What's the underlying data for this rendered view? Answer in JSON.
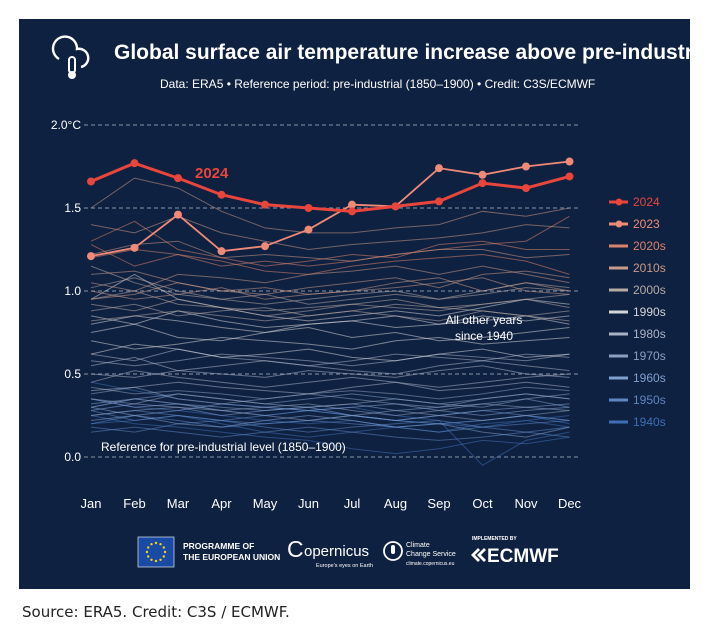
{
  "header": {
    "title": "Global surface air temperature increase above pre-industrial",
    "subtitle": "Data: ERA5 • Reference period: pre-industrial (1850–1900) • Credit: C3S/ECMWF"
  },
  "annotations": {
    "label_2024": "2024",
    "other_years_line1": "All other years",
    "other_years_line2": "since 1940",
    "reference": "Reference for pre-industrial level (1850–1900)"
  },
  "footer_logos": {
    "eu_line1": "PROGRAMME OF",
    "eu_line2": "THE EUROPEAN UNION",
    "copernicus": "opernicus",
    "copernicus_tag": "Europe's eyes on Earth",
    "c3s_line1": "Climate",
    "c3s_line2": "Change Service",
    "c3s_url": "climate.copernicus.eu",
    "implemented_by": "IMPLEMENTED BY",
    "ecmwf": "ECMWF"
  },
  "source": "Source: ERA5. Credit: C3S / ECMWF.",
  "colors": {
    "background": "#0f2140",
    "y2024": "#e8453c",
    "y2023": "#ef8a78",
    "grid": "#8a95a8",
    "text": "#ffffff"
  },
  "chart_data": {
    "type": "line",
    "title": "Global surface air temperature increase above pre-industrial",
    "xlabel": "",
    "ylabel": "",
    "ylim": [
      -0.2,
      2.0
    ],
    "yticks": [
      0.0,
      0.5,
      1.0,
      1.5,
      2.0
    ],
    "ytick_labels": [
      "0.0",
      "0.5",
      "1.0",
      "1.5",
      "2.0°C"
    ],
    "grid": "dashed horizontal",
    "categories": [
      "Jan",
      "Feb",
      "Mar",
      "Apr",
      "May",
      "Jun",
      "Jul",
      "Aug",
      "Sep",
      "Oct",
      "Nov",
      "Dec"
    ],
    "series": [
      {
        "name": "2024",
        "values": [
          1.66,
          1.77,
          1.68,
          1.58,
          1.52,
          1.5,
          1.48,
          1.51,
          1.54,
          1.65,
          1.62,
          1.69
        ]
      },
      {
        "name": "2023",
        "values": [
          1.21,
          1.26,
          1.46,
          1.24,
          1.27,
          1.37,
          1.52,
          1.51,
          1.74,
          1.7,
          1.75,
          1.78
        ]
      }
    ],
    "decades": [
      {
        "name": "2020s",
        "color": "#d9836c",
        "values": [
          [
            1.3,
            1.42,
            1.25,
            1.2,
            1.15,
            1.18,
            1.22,
            1.2,
            1.28,
            1.3,
            1.25,
            1.25
          ],
          [
            1.28,
            1.15,
            1.22,
            1.18,
            1.12,
            1.1,
            1.15,
            1.18,
            1.2,
            1.22,
            1.18,
            1.1
          ],
          [
            1.2,
            1.25,
            1.22,
            1.15,
            1.18,
            1.15,
            1.18,
            1.22,
            1.25,
            1.28,
            1.3,
            1.45
          ]
        ]
      },
      {
        "name": "2010s",
        "color": "#c99a88",
        "values": [
          [
            1.5,
            1.68,
            1.62,
            1.48,
            1.38,
            1.35,
            1.35,
            1.38,
            1.4,
            1.48,
            1.45,
            1.5
          ],
          [
            1.4,
            1.35,
            1.45,
            1.35,
            1.3,
            1.25,
            1.28,
            1.3,
            1.32,
            1.35,
            1.4,
            1.38
          ],
          [
            1.22,
            1.28,
            1.3,
            1.2,
            1.22,
            1.2,
            1.18,
            1.22,
            1.25,
            1.25,
            1.2,
            1.22
          ],
          [
            1.05,
            1.0,
            1.1,
            1.08,
            1.05,
            1.1,
            1.12,
            1.15,
            1.1,
            1.15,
            1.1,
            1.05
          ],
          [
            0.95,
            0.98,
            1.05,
            1.0,
            1.02,
            0.98,
            1.0,
            1.05,
            1.08,
            1.0,
            1.05,
            1.0
          ],
          [
            1.1,
            1.12,
            1.05,
            1.0,
            0.98,
            1.02,
            1.05,
            1.08,
            1.02,
            1.1,
            1.12,
            1.08
          ],
          [
            1.0,
            0.95,
            0.98,
            1.02,
            0.95,
            0.98,
            1.0,
            1.02,
            1.05,
            1.08,
            1.0,
            0.98
          ]
        ]
      },
      {
        "name": "2000s",
        "color": "#b6aaa6",
        "values": [
          [
            1.02,
            1.08,
            1.0,
            0.95,
            0.92,
            0.95,
            0.98,
            1.0,
            0.95,
            0.98,
            1.02,
            1.0
          ],
          [
            0.92,
            0.88,
            0.95,
            0.9,
            0.88,
            0.9,
            0.92,
            0.95,
            0.9,
            0.92,
            0.95,
            0.9
          ],
          [
            0.88,
            0.92,
            0.85,
            0.88,
            0.9,
            0.85,
            0.88,
            0.92,
            0.9,
            0.88,
            0.85,
            0.88
          ],
          [
            1.15,
            1.05,
            0.98,
            0.95,
            0.98,
            0.92,
            0.95,
            0.98,
            0.95,
            1.0,
            1.05,
            1.02
          ],
          [
            0.82,
            0.85,
            0.88,
            0.85,
            0.82,
            0.85,
            0.88,
            0.85,
            0.82,
            0.88,
            0.85,
            0.82
          ],
          [
            0.95,
            1.0,
            0.92,
            0.9,
            0.85,
            0.88,
            0.92,
            0.9,
            0.88,
            0.92,
            0.95,
            0.98
          ]
        ]
      },
      {
        "name": "1990s",
        "color": "#d4d4d8",
        "values": [
          [
            0.85,
            0.8,
            0.88,
            0.82,
            0.78,
            0.8,
            0.82,
            0.85,
            0.8,
            0.82,
            0.85,
            0.8
          ],
          [
            0.75,
            0.8,
            0.72,
            0.7,
            0.75,
            0.78,
            0.72,
            0.75,
            0.7,
            0.72,
            0.75,
            0.78
          ],
          [
            0.7,
            0.65,
            0.68,
            0.72,
            0.7,
            0.68,
            0.65,
            0.7,
            0.72,
            0.68,
            0.7,
            0.72
          ],
          [
            0.62,
            0.68,
            0.65,
            0.6,
            0.62,
            0.65,
            0.6,
            0.58,
            0.62,
            0.65,
            0.6,
            0.62
          ],
          [
            0.8,
            0.85,
            0.82,
            0.78,
            0.75,
            0.8,
            0.82,
            0.78,
            0.8,
            0.85,
            0.82,
            0.85
          ],
          [
            0.95,
            1.1,
            0.95,
            0.9,
            0.85,
            0.82,
            0.85,
            0.88,
            0.85,
            0.9,
            0.95,
            0.92
          ]
        ]
      },
      {
        "name": "1980s",
        "color": "#a9b2c6",
        "values": [
          [
            0.62,
            0.58,
            0.65,
            0.6,
            0.58,
            0.55,
            0.58,
            0.62,
            0.6,
            0.58,
            0.62,
            0.6
          ],
          [
            0.55,
            0.6,
            0.52,
            0.55,
            0.58,
            0.55,
            0.52,
            0.5,
            0.55,
            0.58,
            0.55,
            0.52
          ],
          [
            0.5,
            0.48,
            0.52,
            0.5,
            0.48,
            0.52,
            0.5,
            0.48,
            0.52,
            0.55,
            0.5,
            0.48
          ],
          [
            0.45,
            0.52,
            0.48,
            0.45,
            0.42,
            0.45,
            0.48,
            0.45,
            0.42,
            0.45,
            0.48,
            0.5
          ],
          [
            0.58,
            0.55,
            0.58,
            0.62,
            0.6,
            0.58,
            0.55,
            0.58,
            0.62,
            0.6,
            0.58,
            0.62
          ],
          [
            0.4,
            0.42,
            0.45,
            0.42,
            0.4,
            0.38,
            0.42,
            0.45,
            0.4,
            0.42,
            0.45,
            0.42
          ]
        ]
      },
      {
        "name": "1970s",
        "color": "#8d9fc0",
        "values": [
          [
            0.42,
            0.38,
            0.4,
            0.38,
            0.35,
            0.38,
            0.4,
            0.38,
            0.35,
            0.38,
            0.42,
            0.4
          ],
          [
            0.35,
            0.32,
            0.38,
            0.35,
            0.32,
            0.3,
            0.32,
            0.35,
            0.32,
            0.3,
            0.35,
            0.38
          ],
          [
            0.3,
            0.35,
            0.32,
            0.28,
            0.3,
            0.32,
            0.28,
            0.25,
            0.28,
            0.32,
            0.3,
            0.28
          ],
          [
            0.38,
            0.42,
            0.35,
            0.32,
            0.35,
            0.38,
            0.35,
            0.32,
            0.3,
            0.35,
            0.38,
            0.35
          ],
          [
            0.25,
            0.28,
            0.3,
            0.28,
            0.25,
            0.22,
            0.25,
            0.28,
            0.25,
            0.22,
            0.25,
            0.28
          ]
        ]
      },
      {
        "name": "1960s",
        "color": "#7fa0cf",
        "values": [
          [
            0.35,
            0.3,
            0.32,
            0.3,
            0.28,
            0.3,
            0.32,
            0.28,
            0.3,
            0.32,
            0.35,
            0.3
          ],
          [
            0.28,
            0.32,
            0.3,
            0.25,
            0.28,
            0.3,
            0.25,
            0.22,
            0.25,
            0.28,
            0.3,
            0.32
          ],
          [
            0.3,
            0.25,
            0.28,
            0.32,
            0.3,
            0.28,
            0.3,
            0.32,
            0.28,
            0.25,
            0.28,
            0.3
          ],
          [
            0.22,
            0.25,
            0.2,
            0.18,
            0.22,
            0.25,
            0.22,
            0.18,
            0.2,
            0.15,
            0.12,
            0.18
          ],
          [
            0.32,
            0.35,
            0.38,
            0.35,
            0.32,
            0.35,
            0.38,
            0.35,
            0.32,
            0.35,
            0.38,
            0.35
          ]
        ]
      },
      {
        "name": "1950s",
        "color": "#5d86c2",
        "values": [
          [
            0.28,
            0.22,
            0.25,
            0.22,
            0.2,
            0.22,
            0.25,
            0.22,
            0.2,
            0.22,
            0.25,
            0.22
          ],
          [
            0.2,
            0.25,
            0.22,
            0.18,
            0.2,
            0.22,
            0.2,
            0.18,
            0.15,
            0.18,
            0.2,
            0.22
          ],
          [
            0.18,
            0.15,
            0.2,
            0.22,
            0.18,
            0.15,
            0.18,
            0.2,
            0.22,
            0.18,
            0.15,
            0.18
          ],
          [
            0.25,
            0.28,
            0.25,
            0.22,
            0.25,
            0.28,
            0.25,
            0.22,
            0.25,
            0.28,
            0.25,
            0.22
          ],
          [
            0.15,
            0.18,
            0.15,
            0.12,
            0.15,
            0.18,
            0.15,
            0.12,
            0.1,
            0.12,
            0.15,
            0.12
          ]
        ]
      },
      {
        "name": "1940s",
        "color": "#3e6fb5",
        "values": [
          [
            0.45,
            0.4,
            0.35,
            0.32,
            0.3,
            0.28,
            0.25,
            0.22,
            0.2,
            0.18,
            0.22,
            0.25
          ],
          [
            0.3,
            0.35,
            0.32,
            0.28,
            0.25,
            0.28,
            0.3,
            0.25,
            0.22,
            -0.05,
            0.1,
            0.15
          ],
          [
            0.2,
            0.22,
            0.25,
            0.2,
            0.15,
            0.12,
            0.15,
            0.18,
            0.15,
            0.2,
            0.22,
            0.18
          ],
          [
            0.25,
            0.2,
            0.18,
            0.15,
            0.12,
            0.1,
            0.05,
            0.02,
            0.05,
            0.1,
            0.08,
            0.12
          ],
          [
            0.35,
            0.3,
            0.28,
            0.25,
            0.22,
            0.2,
            0.22,
            0.18,
            0.2,
            0.22,
            0.25,
            0.2
          ]
        ]
      }
    ]
  }
}
